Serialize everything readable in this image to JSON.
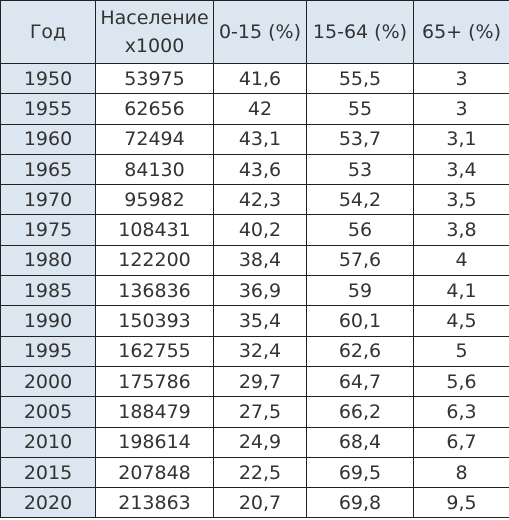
{
  "table": {
    "header": [
      "Год",
      "Население x1000",
      "0-15 (%)",
      "15-64 (%)",
      "65+ (%)"
    ],
    "rows": [
      [
        "1950",
        "53975",
        "41,6",
        "55,5",
        "3"
      ],
      [
        "1955",
        "62656",
        "42",
        "55",
        "3"
      ],
      [
        "1960",
        "72494",
        "43,1",
        "53,7",
        "3,1"
      ],
      [
        "1965",
        "84130",
        "43,6",
        "53",
        "3,4"
      ],
      [
        "1970",
        "95982",
        "42,3",
        "54,2",
        "3,5"
      ],
      [
        "1975",
        "108431",
        "40,2",
        "56",
        "3,8"
      ],
      [
        "1980",
        "122200",
        "38,4",
        "57,6",
        "4"
      ],
      [
        "1985",
        "136836",
        "36,9",
        "59",
        "4,1"
      ],
      [
        "1990",
        "150393",
        "35,4",
        "60,1",
        "4,5"
      ],
      [
        "1995",
        "162755",
        "32,4",
        "62,6",
        "5"
      ],
      [
        "2000",
        "175786",
        "29,7",
        "64,7",
        "5,6"
      ],
      [
        "2005",
        "188479",
        "27,5",
        "66,2",
        "6,3"
      ],
      [
        "2010",
        "198614",
        "24,9",
        "68,4",
        "6,7"
      ],
      [
        "2015",
        "207848",
        "22,5",
        "69,5",
        "8"
      ],
      [
        "2020",
        "213863",
        "20,7",
        "69,8",
        "9,5"
      ]
    ]
  }
}
